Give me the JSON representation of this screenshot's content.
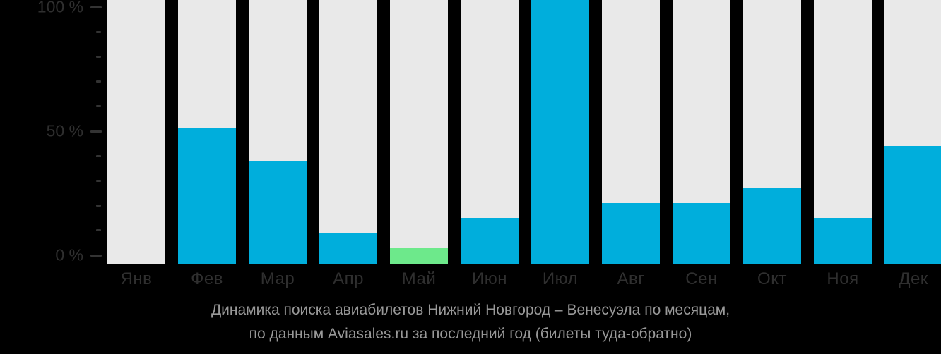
{
  "colors": {
    "background": "#000000",
    "bar_track": "#E9E9E9",
    "bar_fill": "#00AEDC",
    "bar_highlight": "#6DE98B",
    "axis_text": "#2F2F2F",
    "tick": "#333333",
    "caption_text": "#999999"
  },
  "y_axis": {
    "minor_step": 10,
    "max": 100,
    "major_labels": [
      {
        "value": 100,
        "text": "100 %"
      },
      {
        "value": 50,
        "text": "50 %"
      },
      {
        "value": 0,
        "text": "0 %"
      }
    ]
  },
  "chart_data": {
    "type": "bar",
    "title": "Динамика поиска авиабилетов Нижний Новгород – Венесуэла по месяцам,",
    "subtitle": "по данным Aviasales.ru за последний год (билеты туда-обратно)",
    "categories": [
      "Янв",
      "Фев",
      "Мар",
      "Апр",
      "Май",
      "Июн",
      "Июл",
      "Авг",
      "Сен",
      "Окт",
      "Ноя",
      "Дек"
    ],
    "values": [
      0,
      51,
      38,
      9,
      3,
      15,
      100,
      21,
      21,
      27,
      15,
      44
    ],
    "unit": "%",
    "ylim": [
      0,
      100
    ],
    "grid": false,
    "legend": false,
    "highlight_index": 4
  }
}
